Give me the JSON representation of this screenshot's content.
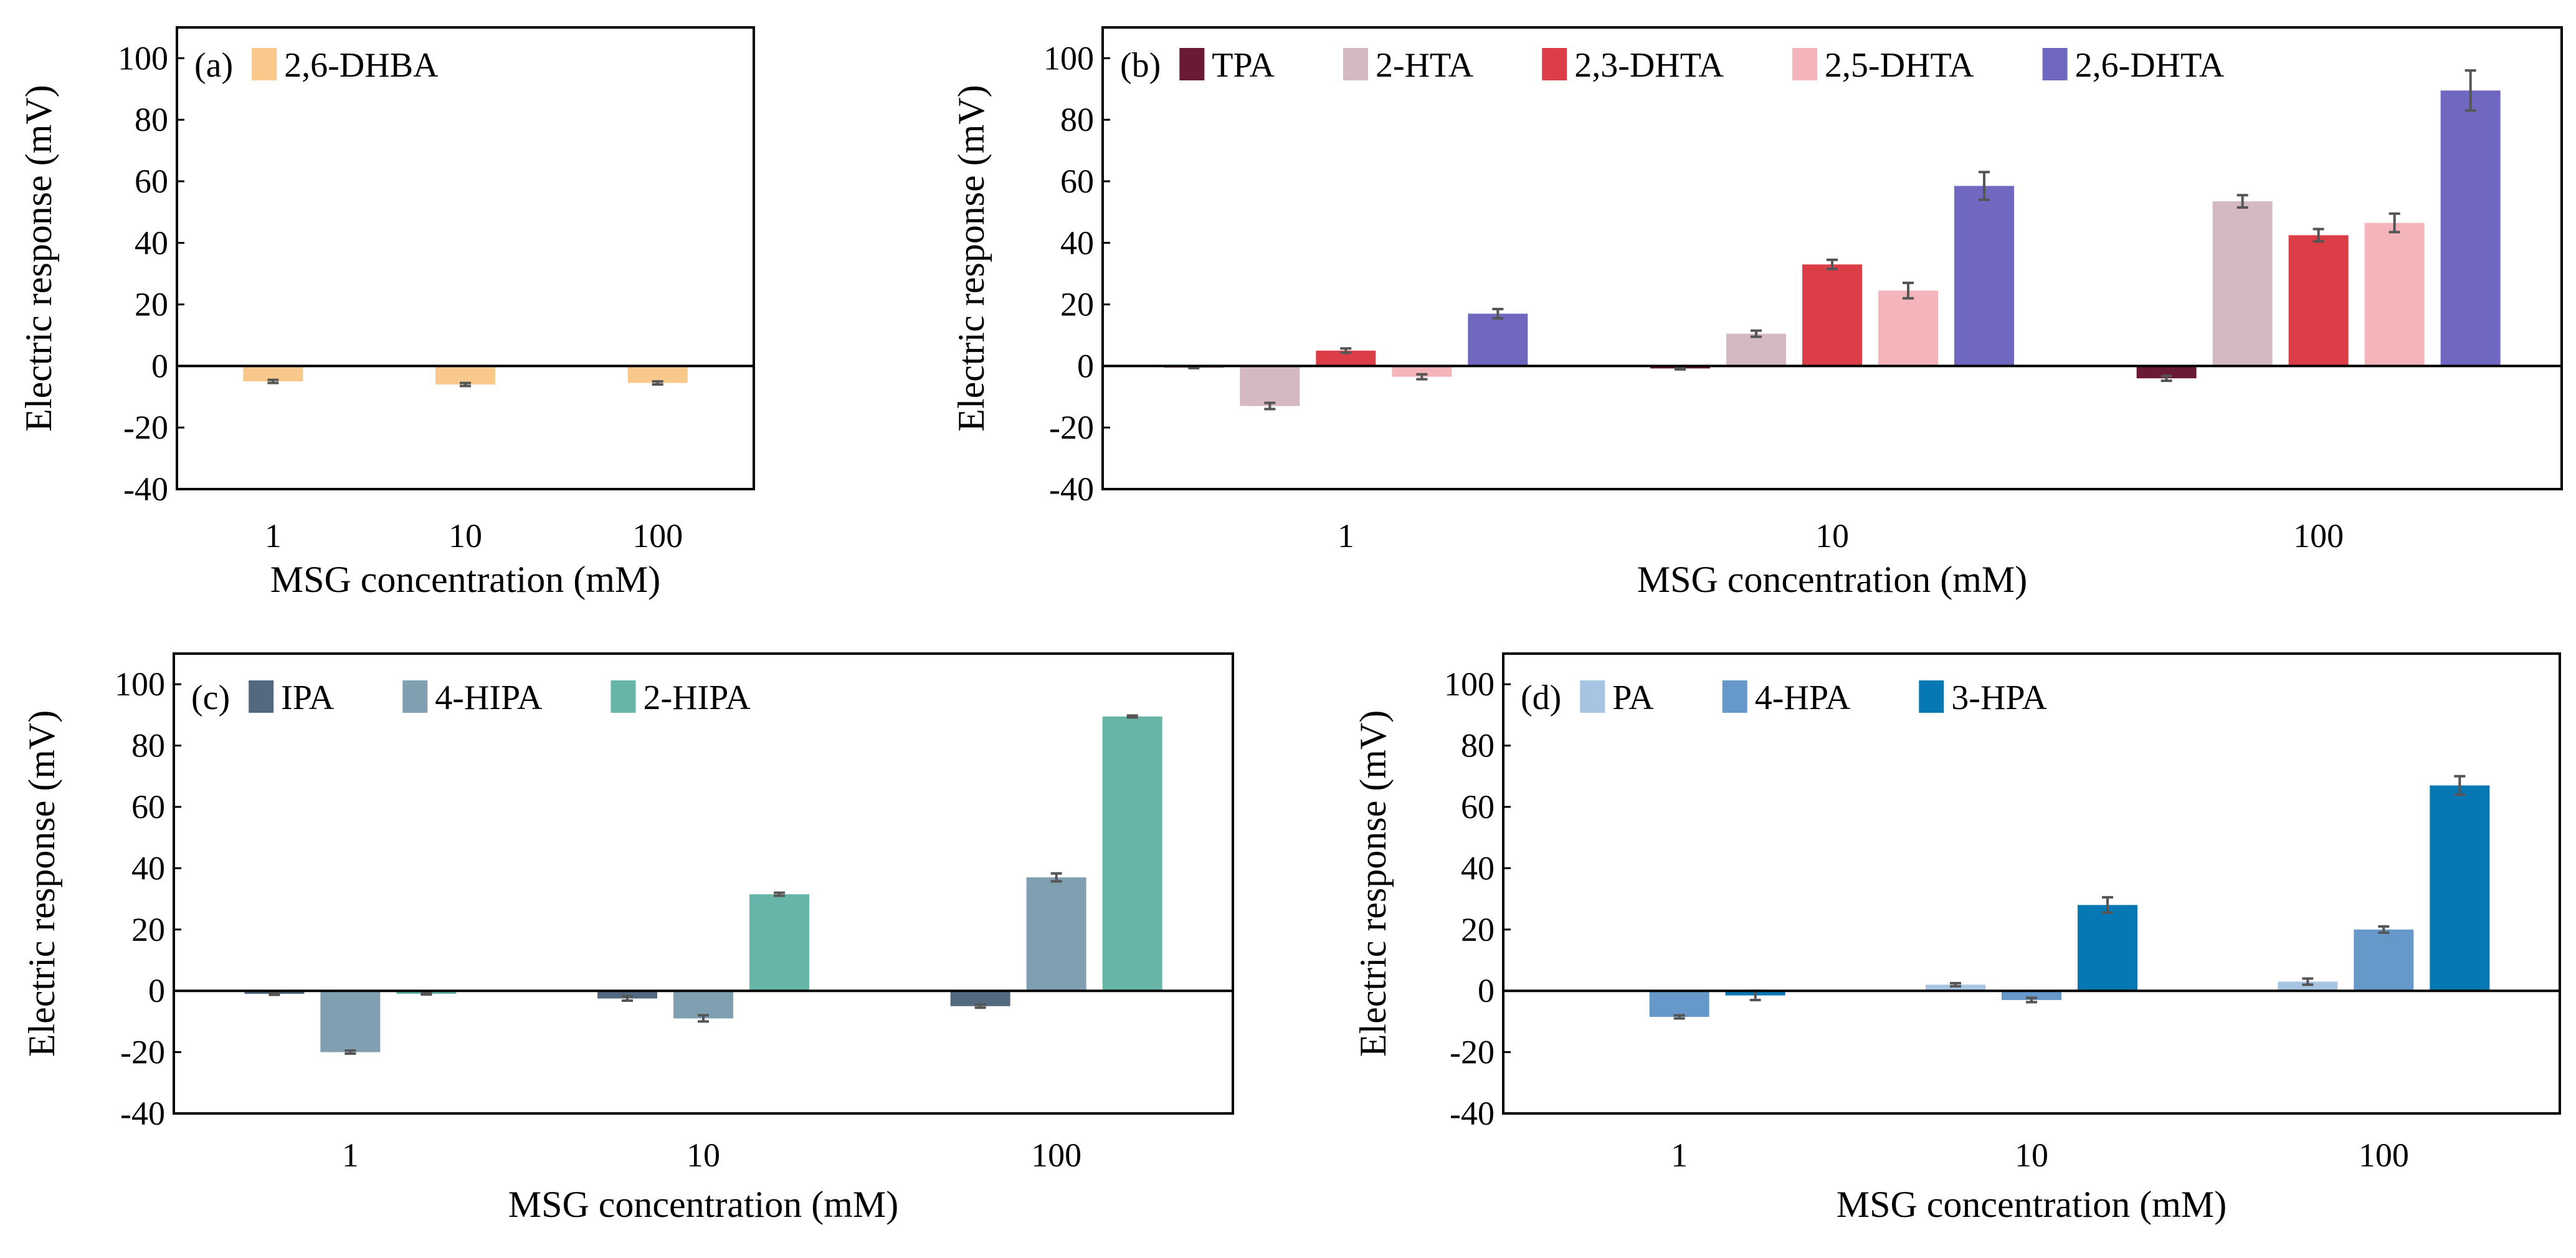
{
  "chart_data": [
    {
      "type": "bar",
      "panel_label": "(a)",
      "xlabel": "MSG concentration (mM)",
      "ylabel": "Electric response (mV)",
      "categories": [
        "1",
        "10",
        "100"
      ],
      "yticks": [
        "100",
        "80",
        "60",
        "40",
        "20",
        "0",
        "-20",
        "-40"
      ],
      "ylim": [
        -40,
        110
      ],
      "legend": "top-left",
      "series": [
        {
          "name": "2,6-DHBA",
          "color": "#F8C98A",
          "values": [
            -5,
            -6,
            -5.5
          ],
          "errors": [
            0.5,
            0.5,
            0.5
          ]
        }
      ]
    },
    {
      "type": "bar",
      "panel_label": "(b)",
      "xlabel": "MSG concentration (mM)",
      "ylabel": "Electric response (mV)",
      "categories": [
        "1",
        "10",
        "100"
      ],
      "yticks": [
        "100",
        "80",
        "60",
        "40",
        "20",
        "0",
        "-20",
        "-40"
      ],
      "ylim": [
        -40,
        110
      ],
      "legend": "top-left",
      "series": [
        {
          "name": "TPA",
          "color": "#6B1A33",
          "values": [
            -0.5,
            -0.8,
            -4
          ],
          "errors": [
            0.2,
            0.3,
            0.8
          ]
        },
        {
          "name": "2-HTA",
          "color": "#D4B9C2",
          "values": [
            -13,
            10.5,
            53.5
          ],
          "errors": [
            1,
            1,
            2
          ]
        },
        {
          "name": "2,3-DHTA",
          "color": "#DC3E48",
          "values": [
            5,
            33,
            42.5
          ],
          "errors": [
            0.7,
            1.5,
            2
          ]
        },
        {
          "name": "2,5-DHTA",
          "color": "#F4B5BA",
          "values": [
            -3.5,
            24.5,
            46.5
          ],
          "errors": [
            0.8,
            2.5,
            3
          ]
        },
        {
          "name": "2,6-DHTA",
          "color": "#7067C0",
          "values": [
            17,
            58.5,
            89.5
          ],
          "errors": [
            1.5,
            4.5,
            6.5
          ]
        }
      ]
    },
    {
      "type": "bar",
      "panel_label": "(c)",
      "xlabel": "MSG concentration (mM)",
      "ylabel": "Electric response (mV)",
      "categories": [
        "1",
        "10",
        "100"
      ],
      "yticks": [
        "100",
        "80",
        "60",
        "40",
        "20",
        "0",
        "-20",
        "-40"
      ],
      "ylim": [
        -40,
        110
      ],
      "legend": "top-left",
      "series": [
        {
          "name": "IPA",
          "color": "#536980",
          "values": [
            -1,
            -2.5,
            -5
          ],
          "errors": [
            0.3,
            0.7,
            0.5
          ]
        },
        {
          "name": "4-HIPA",
          "color": "#809FB0",
          "values": [
            -20,
            -9,
            37
          ],
          "errors": [
            0.5,
            1,
            1.3
          ]
        },
        {
          "name": "2-HIPA",
          "color": "#66B5A8",
          "values": [
            -1,
            31.5,
            89.5
          ],
          "errors": [
            0.2,
            0.5,
            0.3
          ]
        }
      ]
    },
    {
      "type": "bar",
      "panel_label": "(d)",
      "xlabel": "MSG concentration (mM)",
      "ylabel": "Electric response (mV)",
      "categories": [
        "1",
        "10",
        "100"
      ],
      "yticks": [
        "100",
        "80",
        "60",
        "40",
        "20",
        "0",
        "-20",
        "-40"
      ],
      "ylim": [
        -40,
        110
      ],
      "legend": "top-left",
      "series": [
        {
          "name": "PA",
          "color": "#A7C4E2",
          "values": [
            0,
            2,
            3
          ],
          "errors": [
            0,
            0.5,
            1
          ]
        },
        {
          "name": "4-HPA",
          "color": "#6699C9",
          "values": [
            -8.5,
            -3,
            20
          ],
          "errors": [
            0.5,
            0.7,
            1
          ]
        },
        {
          "name": "3-HPA",
          "color": "#0679B4",
          "values": [
            -1.5,
            28,
            67
          ],
          "errors": [
            1.5,
            2.5,
            3
          ]
        }
      ]
    }
  ]
}
